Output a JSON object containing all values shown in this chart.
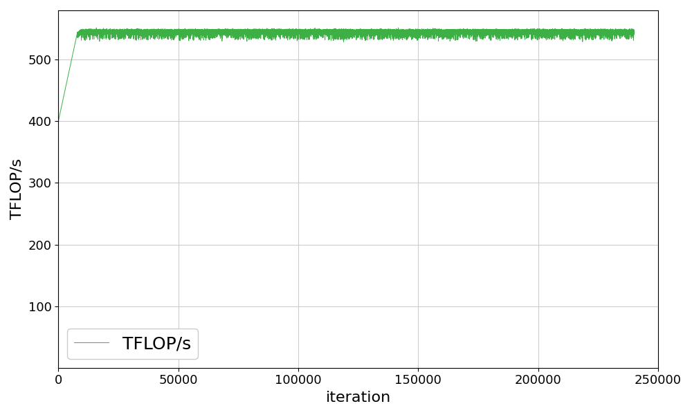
{
  "line_color": "#3cb044",
  "xlabel": "iteration",
  "ylabel": "TFLOP/s",
  "legend_label": "TFLOP/s",
  "xlim": [
    0,
    245000
  ],
  "ylim": [
    0,
    580
  ],
  "yticks": [
    100,
    200,
    300,
    400,
    500
  ],
  "xticks": [
    0,
    50000,
    100000,
    150000,
    200000,
    250000
  ],
  "grid_color": "#cccccc",
  "background_color": "#ffffff",
  "line_width": 0.7,
  "total_iterations": 240000,
  "warmup_end": 8000,
  "warmup_start_val": 400,
  "steady_val": 545,
  "noise_std": 1.5,
  "label_fontsize": 16,
  "tick_fontsize": 13,
  "legend_fontsize": 18
}
